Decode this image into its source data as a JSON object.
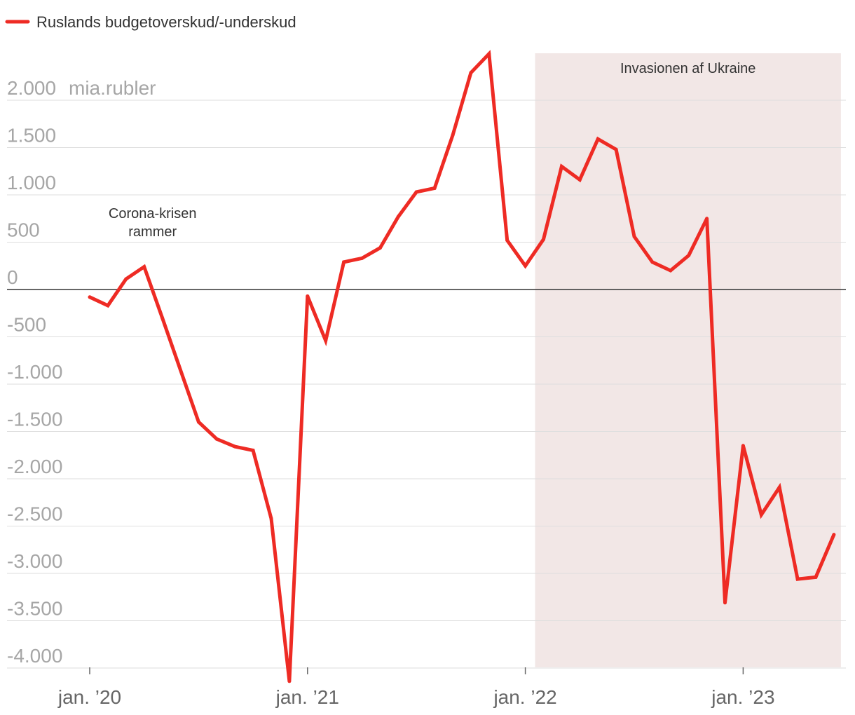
{
  "chart_data": {
    "type": "line",
    "legend": {
      "label": "Ruslands budgetoverskud/-underskud",
      "placement": "top-left"
    },
    "ylabel": "mia.rubler",
    "ylim": [
      -4000,
      2000
    ],
    "yticks": [
      2000,
      1500,
      1000,
      500,
      0,
      -500,
      -1000,
      -1500,
      -2000,
      -2500,
      -3000,
      -3500,
      -4000
    ],
    "ytick_labels": [
      "2.000",
      "1.500",
      "1.000",
      "500",
      "0",
      "-500",
      "-1.000",
      "-1.500",
      "-2.000",
      "-2.500",
      "-3.000",
      "-3.500",
      "-4.000"
    ],
    "xticks": [
      {
        "x": "2020-01",
        "label": "jan. ’20"
      },
      {
        "x": "2021-01",
        "label": "jan. ’21"
      },
      {
        "x": "2022-01",
        "label": "jan. ’22"
      },
      {
        "x": "2023-01",
        "label": "jan. ’23"
      }
    ],
    "grid": true,
    "shaded_region": {
      "start": "2022-02",
      "end": "2023-06",
      "label": "Invasionen af Ukraine"
    },
    "annotations": [
      {
        "x": "2020-04",
        "lines": [
          "Corona-krisen",
          "rammer"
        ]
      }
    ],
    "series": [
      {
        "name": "Ruslands budgetoverskud/-underskud",
        "color": "#ee2b24",
        "x": [
          "2020-01",
          "2020-02",
          "2020-03",
          "2020-04",
          "2020-05",
          "2020-06",
          "2020-07",
          "2020-08",
          "2020-09",
          "2020-10",
          "2020-11",
          "2020-12",
          "2021-01",
          "2021-02",
          "2021-03",
          "2021-04",
          "2021-05",
          "2021-06",
          "2021-07",
          "2021-08",
          "2021-09",
          "2021-10",
          "2021-11",
          "2021-12",
          "2022-01",
          "2022-02",
          "2022-03",
          "2022-04",
          "2022-05",
          "2022-06",
          "2022-07",
          "2022-08",
          "2022-09",
          "2022-10",
          "2022-11",
          "2022-12",
          "2023-01",
          "2023-02",
          "2023-03",
          "2023-04",
          "2023-05",
          "2023-06"
        ],
        "values": [
          -80,
          -170,
          110,
          240,
          -300,
          -850,
          -1400,
          -1580,
          -1660,
          -1700,
          -2420,
          -4140,
          -70,
          -540,
          290,
          330,
          440,
          770,
          1030,
          1070,
          1630,
          2290,
          2490,
          520,
          250,
          530,
          1300,
          1160,
          1590,
          1480,
          560,
          290,
          200,
          360,
          750,
          -3310,
          -1650,
          -2380,
          -2090,
          -3060,
          -3040,
          -2590
        ]
      }
    ]
  }
}
